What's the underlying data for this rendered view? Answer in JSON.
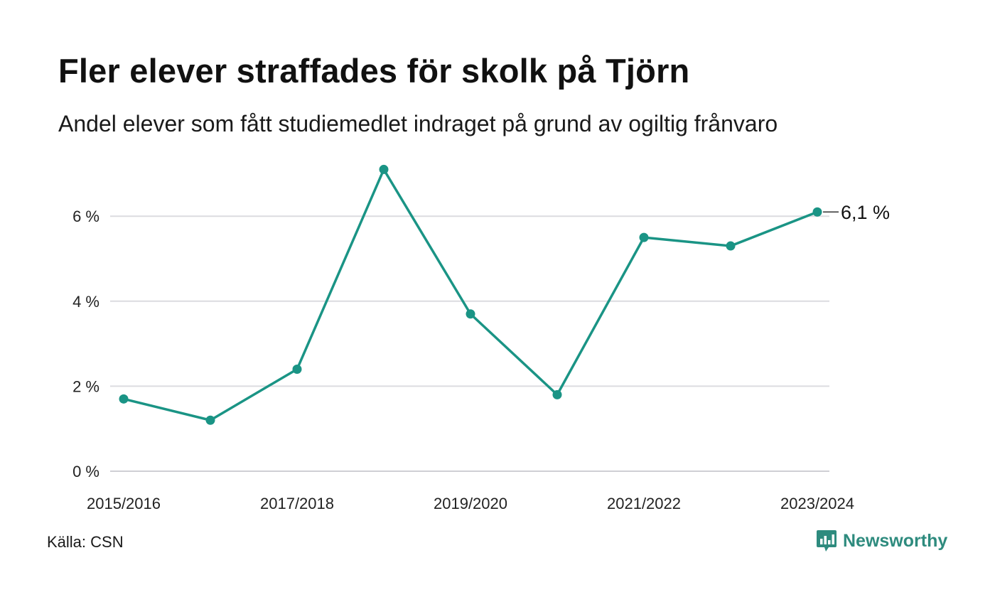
{
  "header": {
    "title": "Fler elever straffades för skolk på Tjörn",
    "subtitle": "Andel elever som fått studiemedlet indraget på grund av ogiltig frånvaro"
  },
  "chart_data": {
    "type": "line",
    "x": [
      "2015/2016",
      "2016/2017",
      "2017/2018",
      "2018/2019",
      "2019/2020",
      "2020/2021",
      "2021/2022",
      "2022/2023",
      "2023/2024"
    ],
    "series": [
      {
        "values": [
          1.7,
          1.2,
          2.4,
          7.1,
          3.7,
          1.8,
          5.5,
          5.3,
          6.1
        ]
      }
    ],
    "x_tick_labels": [
      "2015/2016",
      "2017/2018",
      "2019/2020",
      "2021/2022",
      "2023/2024"
    ],
    "y_ticks": [
      0,
      2,
      4,
      6
    ],
    "y_tick_labels": [
      "0 %",
      "2 %",
      "4 %",
      "6 %"
    ],
    "ylim": [
      0,
      7.3
    ],
    "grid": "horizontal",
    "end_label": "6,1 %",
    "colors": {
      "line": "#1a9485",
      "grid": "#dcdce0",
      "axis": "#cfcfd4"
    }
  },
  "footer": {
    "source": "Källa: CSN",
    "brand": "Newsworthy",
    "brand_icon": "bar-chart-speech-bubble-icon",
    "brand_color": "#2e8b7e"
  }
}
